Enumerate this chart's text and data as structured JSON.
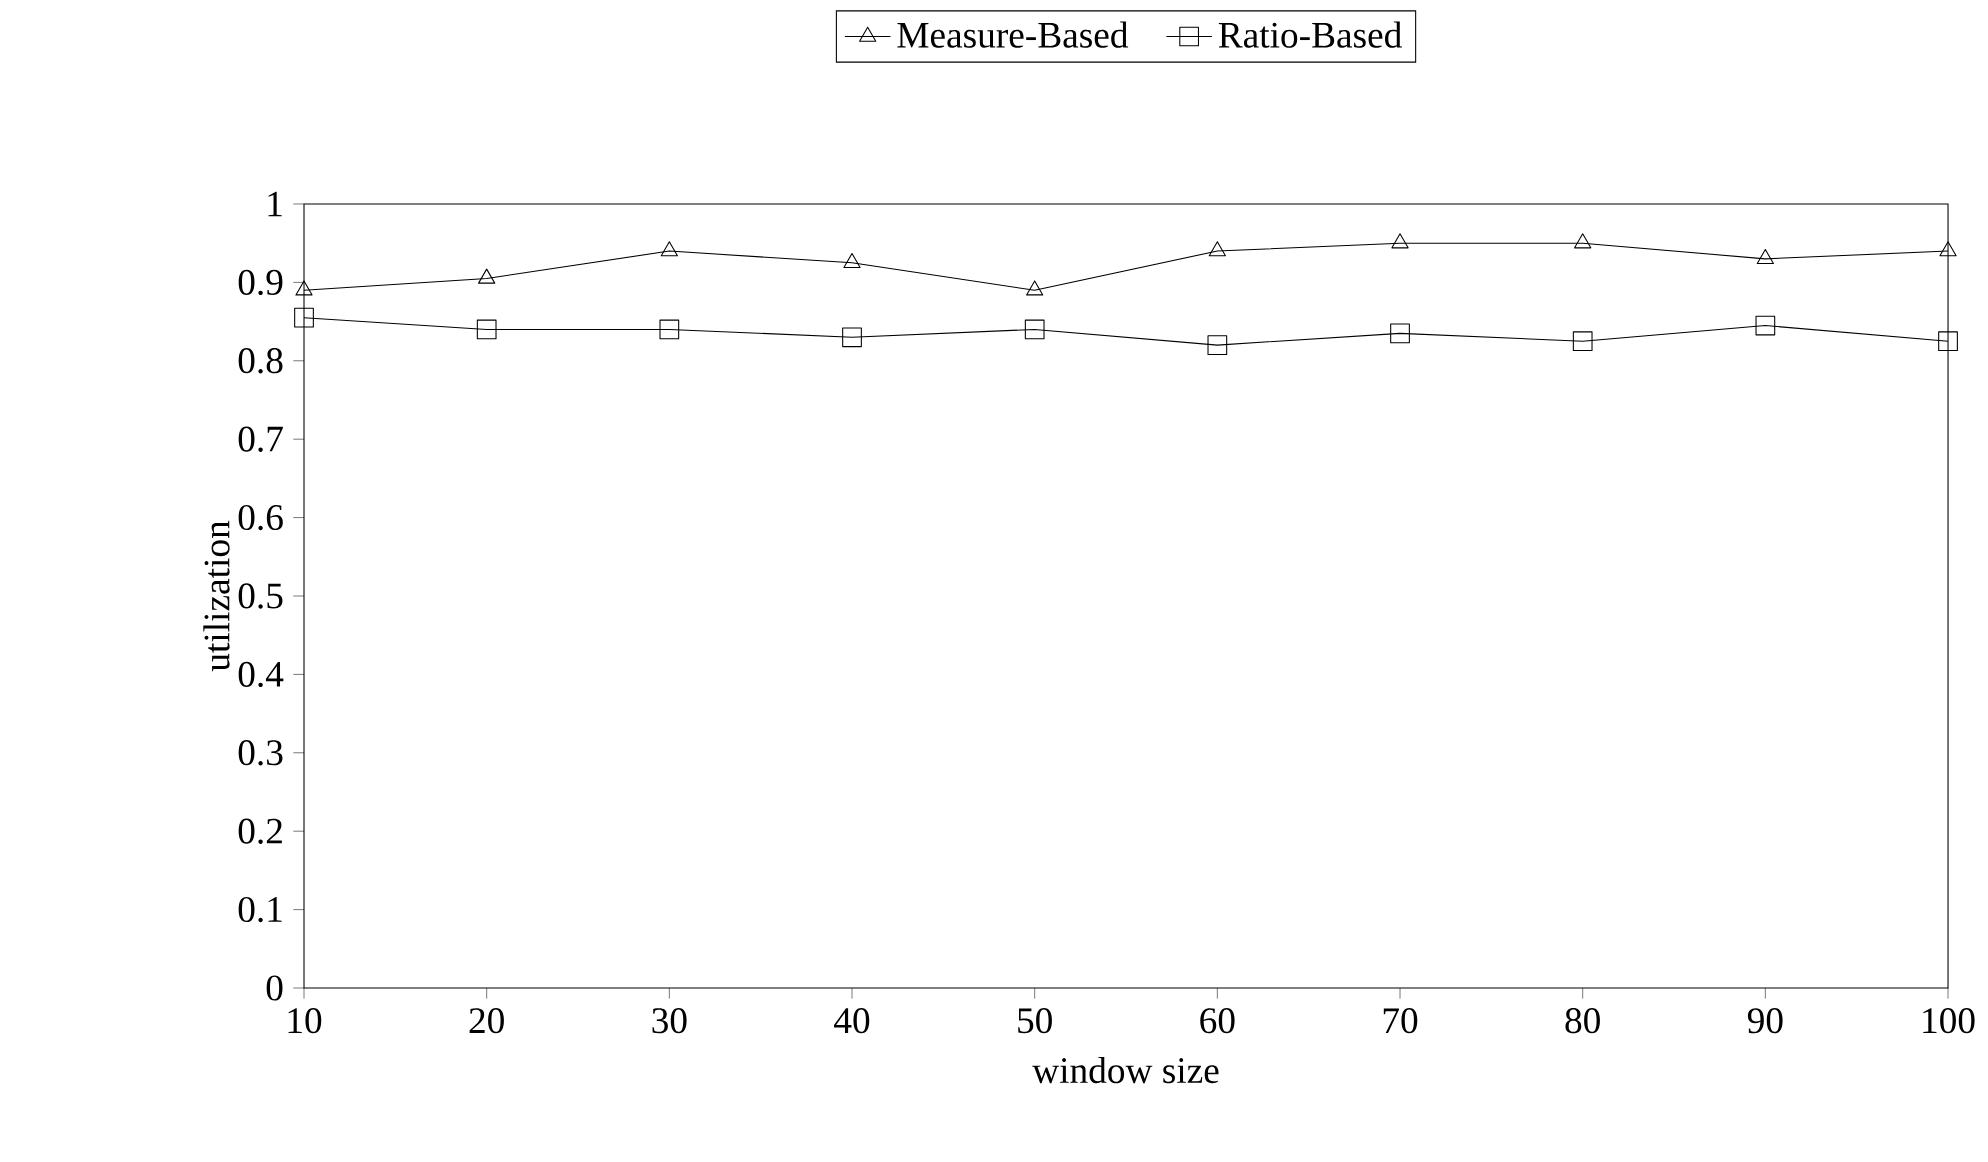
{
  "chart_data": {
    "type": "line",
    "xlabel": "window size",
    "ylabel": "utilization",
    "x": [
      10,
      20,
      30,
      40,
      50,
      60,
      70,
      80,
      90,
      100
    ],
    "series": [
      {
        "name": "Measure-Based",
        "color": "#000000",
        "marker": "triangle",
        "values": [
          0.89,
          0.905,
          0.94,
          0.925,
          0.89,
          0.94,
          0.95,
          0.95,
          0.93,
          0.94
        ]
      },
      {
        "name": "Ratio-Based",
        "color": "#000000",
        "marker": "square",
        "values": [
          0.855,
          0.84,
          0.84,
          0.83,
          0.84,
          0.82,
          0.835,
          0.825,
          0.845,
          0.825
        ]
      }
    ],
    "xlim": [
      10,
      100
    ],
    "xticks": [
      10,
      20,
      30,
      40,
      50,
      60,
      70,
      80,
      90,
      100
    ],
    "ylim": [
      0,
      1
    ],
    "yticks": [
      0,
      0.1,
      0.2,
      0.3,
      0.4,
      0.5,
      0.6,
      0.7,
      0.8,
      0.9,
      1
    ],
    "grid": false,
    "legend": "top",
    "line_style": "solid"
  }
}
